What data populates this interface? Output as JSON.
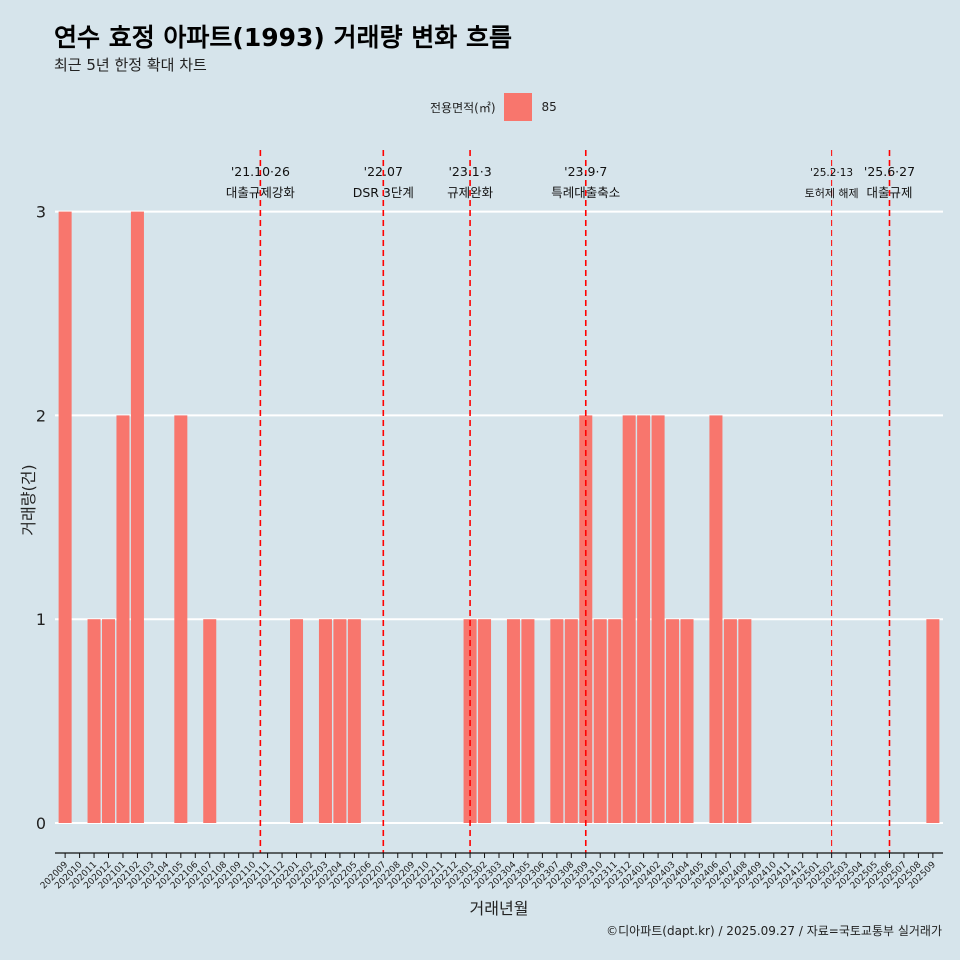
{
  "title": "연수 효정 아파트(1993) 거래량 변화 흐름",
  "subtitle": "최근 5년 한정 확대 차트",
  "legend": {
    "label": "전용면적(㎡)",
    "entry": "85",
    "color": "#f8766d"
  },
  "caption": "©디아파트(dapt.kr) / 2025.09.27 / 자료=국토교통부 실거래가",
  "chart_data": {
    "type": "bar",
    "xlabel": "거래년월",
    "ylabel": "거래량(건)",
    "ylim": [
      0,
      3
    ],
    "yticks": [
      0,
      1,
      2,
      3
    ],
    "grid": true,
    "legend_position": "top",
    "categories": [
      "202009",
      "202010",
      "202011",
      "202012",
      "202101",
      "202102",
      "202103",
      "202104",
      "202105",
      "202106",
      "202107",
      "202108",
      "202109",
      "202110",
      "202111",
      "202112",
      "202201",
      "202202",
      "202203",
      "202204",
      "202205",
      "202206",
      "202207",
      "202208",
      "202209",
      "202210",
      "202211",
      "202212",
      "202301",
      "202302",
      "202303",
      "202304",
      "202305",
      "202306",
      "202307",
      "202308",
      "202309",
      "202310",
      "202311",
      "202312",
      "202401",
      "202402",
      "202403",
      "202404",
      "202405",
      "202406",
      "202407",
      "202408",
      "202409",
      "202410",
      "202411",
      "202412",
      "202501",
      "202502",
      "202503",
      "202504",
      "202505",
      "202506",
      "202507",
      "202508",
      "202509"
    ],
    "series": [
      {
        "name": "85",
        "color": "#f8766d",
        "values": [
          3,
          0,
          1,
          1,
          2,
          3,
          0,
          0,
          2,
          0,
          1,
          0,
          0,
          0,
          0,
          0,
          1,
          0,
          1,
          1,
          1,
          0,
          0,
          0,
          0,
          0,
          0,
          0,
          1,
          1,
          0,
          1,
          1,
          0,
          1,
          1,
          2,
          1,
          1,
          2,
          2,
          2,
          1,
          1,
          0,
          2,
          1,
          1,
          0,
          0,
          0,
          0,
          0,
          0,
          0,
          0,
          0,
          0,
          0,
          0,
          1
        ]
      }
    ],
    "annotations": [
      {
        "x": 202110.5,
        "date": "'21.10·26",
        "text": "대출규제강화",
        "style": "thick"
      },
      {
        "x": 202207,
        "date": "'22.07",
        "text": "DSR 3단계",
        "style": "thick"
      },
      {
        "x": 202301,
        "date": "'23.1·3",
        "text": "규제완화",
        "style": "thick"
      },
      {
        "x": 202309,
        "date": "'23.9·7",
        "text": "특례대출축소",
        "style": "thick"
      },
      {
        "x": 202502,
        "date": "'25.2·13",
        "text": "토허제 해제",
        "style": "thin"
      },
      {
        "x": 202506,
        "date": "'25.6·27",
        "text": "대출규제",
        "style": "thick"
      }
    ]
  }
}
